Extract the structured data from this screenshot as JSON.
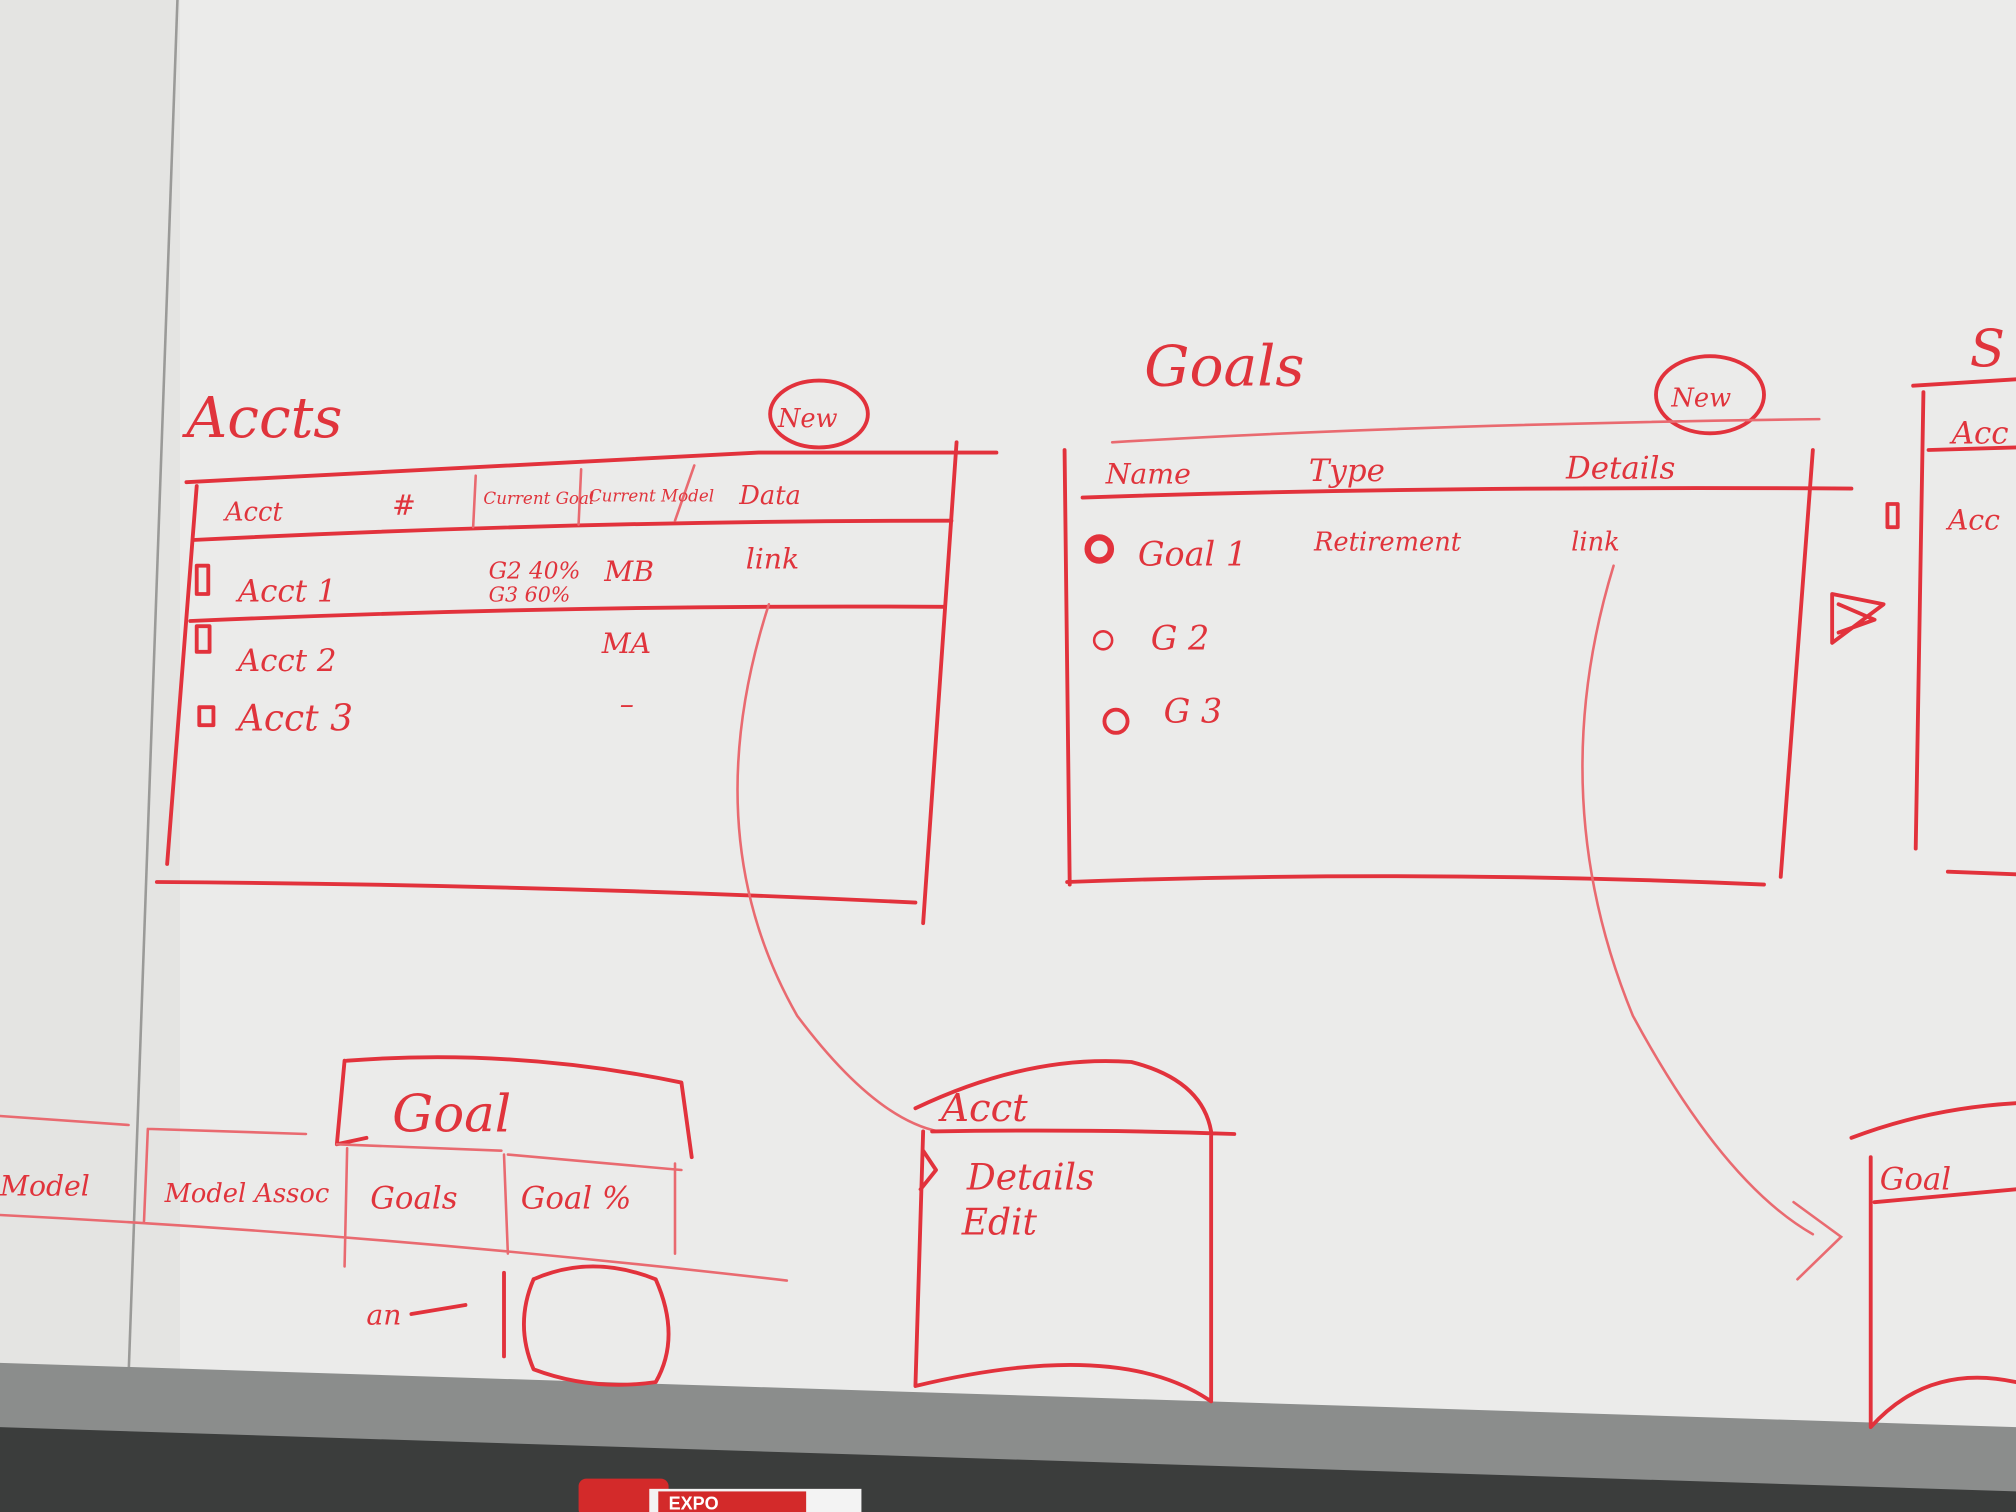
{
  "accounts_panel": {
    "title": "Accts",
    "new_button": "New",
    "columns": [
      "Acct",
      "#",
      "Current Goal",
      "Current Model",
      "Data"
    ],
    "rows": [
      {
        "name": "Acct 1",
        "goal": "G2 40%",
        "goal_2": "G3 60%",
        "model": "MB",
        "data": "link"
      },
      {
        "name": "Acct 2",
        "goal": "",
        "goal_2": "",
        "model": "MA",
        "data": ""
      },
      {
        "name": "Acct 3",
        "goal": "",
        "goal_2": "",
        "model": "–",
        "data": ""
      }
    ]
  },
  "goals_panel": {
    "title": "Goals",
    "new_button": "New",
    "columns": [
      "Name",
      "Type",
      "Details"
    ],
    "rows": [
      {
        "name": "Goal 1",
        "type": "Retirement",
        "details": "link"
      },
      {
        "name": "G 2",
        "type": "",
        "details": ""
      },
      {
        "name": "G 3",
        "type": "",
        "details": ""
      }
    ]
  },
  "goal_detail_sketch": {
    "title": "Goal",
    "columns": [
      "Model",
      "Model Assoc",
      "Goals",
      "Goal %"
    ],
    "footer_label": "an"
  },
  "account_detail_sketch": {
    "title": "Acct",
    "lines": [
      "Details",
      "Edit"
    ]
  },
  "right_edge": {
    "partial_title": "S",
    "partial_items": [
      "Acc",
      "Acc"
    ],
    "partial_box_title": "Goal"
  },
  "marker_brand": "EXPO",
  "colors": {
    "ink": "#e2323c",
    "board": "#ededeb",
    "tray": "#6f7170"
  }
}
